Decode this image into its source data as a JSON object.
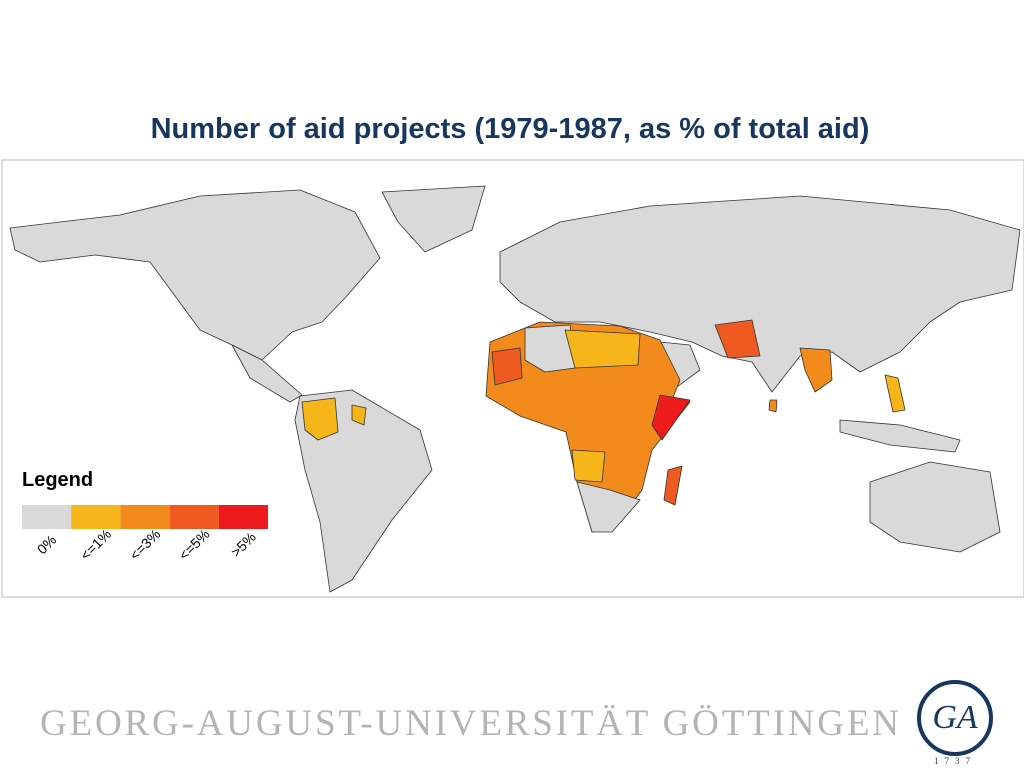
{
  "title": "Number of aid projects (1979-1987, as % of total aid)",
  "legend": {
    "title": "Legend",
    "items": [
      {
        "label": "0%",
        "color": "#d9d9d9"
      },
      {
        "label": "<=1%",
        "color": "#f6b519"
      },
      {
        "label": "<=3%",
        "color": "#f28b1c"
      },
      {
        "label": "<=5%",
        "color": "#ee5a1f"
      },
      {
        "label": ">5%",
        "color": "#ee1b1d"
      }
    ]
  },
  "footer": {
    "university": "GEORG-AUGUST-UNIVERSITÄT GÖTTINGEN",
    "logo_year": "1737"
  }
}
